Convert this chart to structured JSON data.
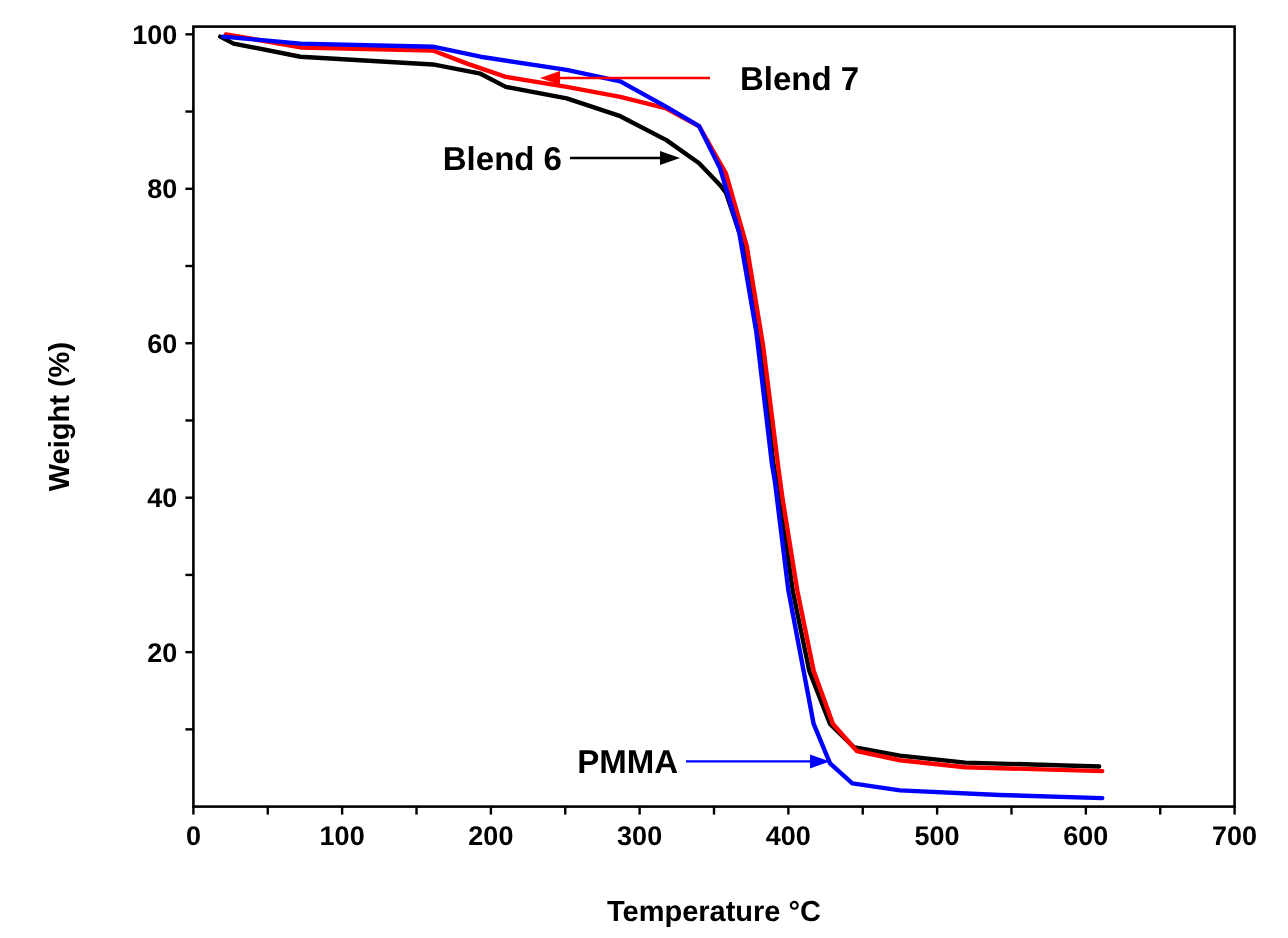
{
  "chart_data": {
    "type": "line",
    "xlabel": "Temperature °C",
    "ylabel": "Weight (%)",
    "xlim": [
      0,
      700
    ],
    "ylim": [
      0,
      101
    ],
    "xticks": [
      0,
      {
        "value": 50,
        "label": null
      },
      100,
      {
        "value": 150,
        "label": null
      },
      200,
      {
        "value": 250,
        "label": null
      },
      300,
      {
        "value": 350,
        "label": null
      },
      400,
      {
        "value": 450,
        "label": null
      },
      500,
      {
        "value": 550,
        "label": null
      },
      600,
      {
        "value": 650,
        "label": null
      },
      700
    ],
    "yticks": [
      {
        "value": 10,
        "label": null
      },
      20,
      {
        "value": 30,
        "label": null
      },
      40,
      {
        "value": 50,
        "label": null
      },
      60,
      {
        "value": 70,
        "label": null
      },
      80,
      {
        "value": 90,
        "label": null
      },
      100
    ],
    "grid": false,
    "legend": false,
    "marker": "none",
    "line_style": "solid",
    "series": [
      {
        "color": "#000000",
        "x": [
          18,
          27,
          72,
          161,
          193,
          210,
          251,
          287,
          318,
          340,
          354,
          358,
          370,
          381,
          390,
          394,
          403,
          414,
          428,
          444,
          475,
          519,
          609
        ],
        "values": [
          99.7,
          98.8,
          97.1,
          96.1,
          94.9,
          93.2,
          91.7,
          89.4,
          86.3,
          83.3,
          80.5,
          79.5,
          72.6,
          61.4,
          44.3,
          40,
          27.9,
          17.6,
          10.7,
          7.7,
          6.6,
          5.7,
          5.2
        ]
      },
      {
        "color": "#ff0000",
        "x": [
          22,
          72,
          161,
          184,
          210,
          251,
          287,
          318,
          340,
          358,
          372,
          383,
          393,
          396,
          406,
          417,
          430,
          446,
          475,
          519,
          611
        ],
        "values": [
          100,
          98.3,
          97.9,
          96.2,
          94.5,
          93.2,
          91.9,
          90.4,
          88.1,
          82,
          72.6,
          59.7,
          44.3,
          40,
          28,
          17.6,
          10.7,
          7.2,
          6,
          5.1,
          4.6
        ]
      },
      {
        "color": "#0000ff",
        "x": [
          20,
          72,
          161,
          193,
          251,
          287,
          318,
          340,
          354,
          367,
          378.5,
          389,
          391,
          400,
          417,
          428,
          443,
          475,
          542,
          611
        ],
        "values": [
          99.7,
          98.8,
          98.4,
          97.1,
          95.4,
          93.9,
          90.6,
          88.1,
          82.7,
          74.3,
          61.4,
          44.3,
          42,
          28,
          10.7,
          5.6,
          3,
          2.1,
          1.5,
          1.1
        ]
      }
    ],
    "annotations": [
      "Blend 7",
      "Blend 6",
      "PMMA"
    ]
  }
}
